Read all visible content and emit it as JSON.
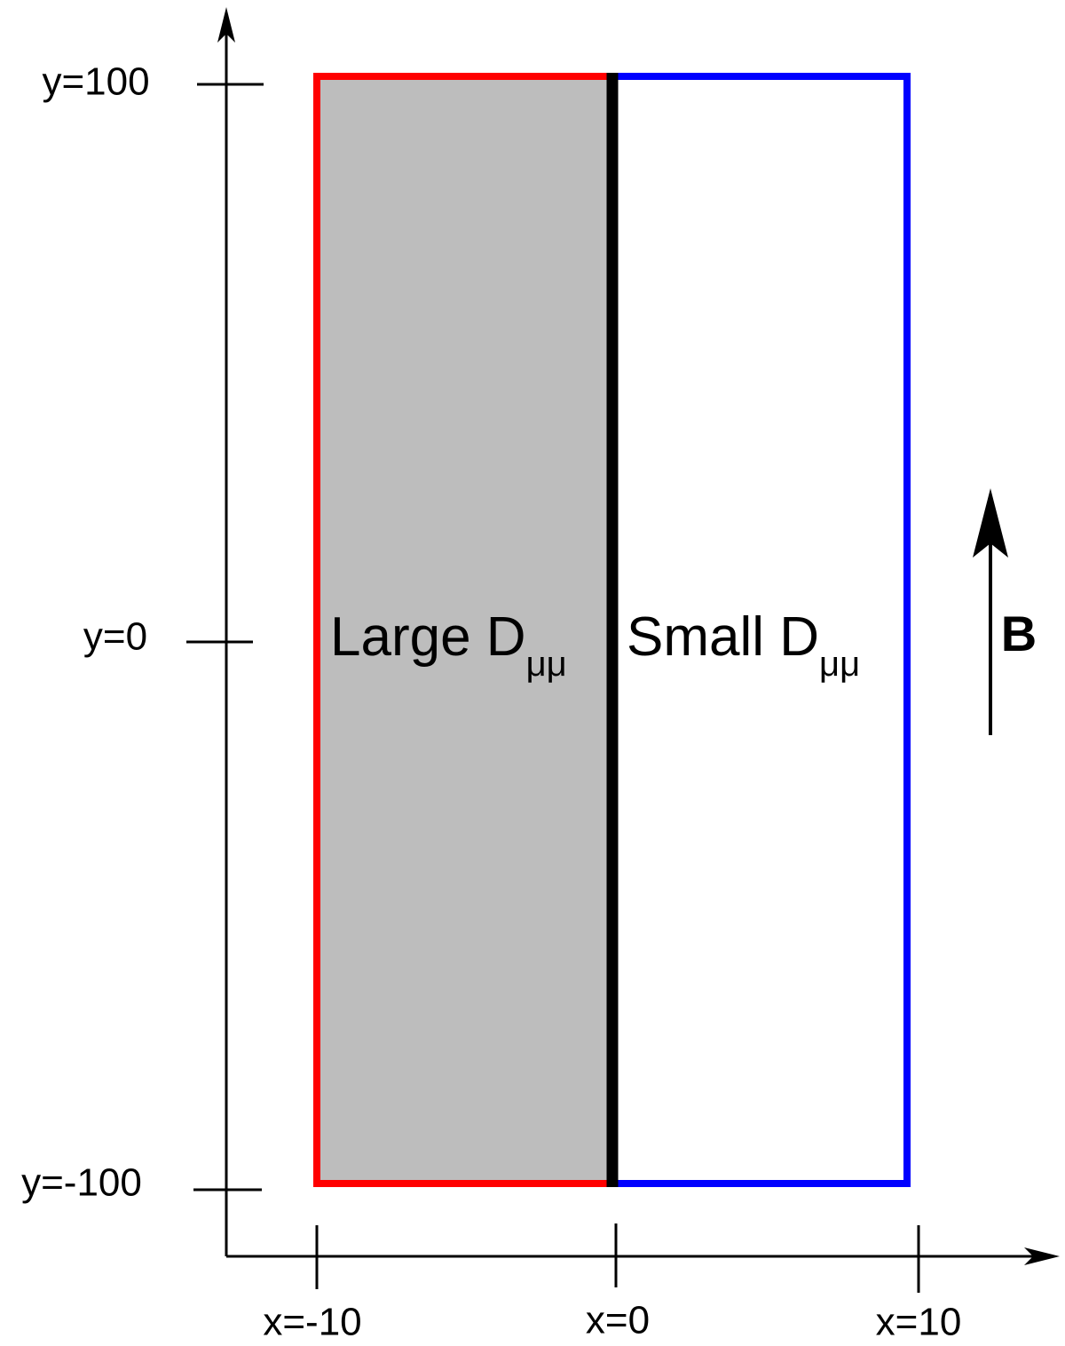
{
  "axes": {
    "y_labels": [
      "y=100",
      "y=0",
      "y=-100"
    ],
    "x_labels": [
      "x=-10",
      "x=0",
      "x=10"
    ]
  },
  "regions": [
    {
      "label": "Large D",
      "subscript": "μμ"
    },
    {
      "label": "Small D",
      "subscript": "μμ"
    }
  ],
  "field": {
    "label": "B"
  }
}
